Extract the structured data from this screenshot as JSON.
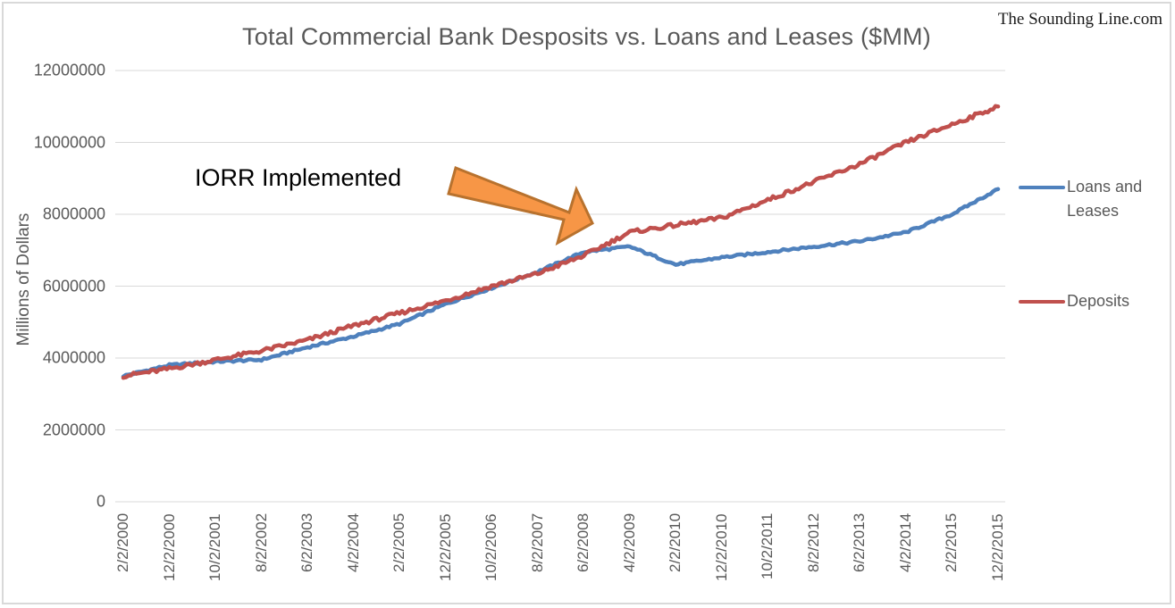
{
  "chart_data": {
    "type": "line",
    "title": "Total Commercial Bank Desposits vs. Loans and Leases ($MM)",
    "xlabel": "",
    "ylabel": "Millions of Dollars",
    "ylim": [
      0,
      12000000
    ],
    "yticks": [
      "0",
      "2000000",
      "4000000",
      "6000000",
      "8000000",
      "10000000",
      "12000000"
    ],
    "grid": true,
    "legend_position": "right",
    "categories": [
      "2/2/2000",
      "12/2/2000",
      "10/2/2001",
      "8/2/2002",
      "6/2/2003",
      "4/2/2004",
      "2/2/2005",
      "12/2/2005",
      "10/2/2006",
      "8/2/2007",
      "6/2/2008",
      "4/2/2009",
      "2/2/2010",
      "12/2/2010",
      "10/2/2011",
      "8/2/2012",
      "6/2/2013",
      "4/2/2014",
      "2/2/2015",
      "12/2/2015"
    ],
    "series": [
      {
        "name": "Loans and Leases",
        "color": "#4f81bd",
        "values": [
          3500000,
          3800000,
          3900000,
          3950000,
          4300000,
          4600000,
          4950000,
          5500000,
          5950000,
          6400000,
          6950000,
          7100000,
          6600000,
          6800000,
          6950000,
          7100000,
          7250000,
          7500000,
          8000000,
          8700000
        ]
      },
      {
        "name": "Deposits",
        "color": "#c0504d",
        "values": [
          3500000,
          3700000,
          3950000,
          4200000,
          4500000,
          4900000,
          5250000,
          5600000,
          6000000,
          6350000,
          6850000,
          7500000,
          7700000,
          7900000,
          8400000,
          8900000,
          9400000,
          10000000,
          10500000,
          11000000
        ]
      }
    ],
    "annotations": [
      {
        "text": "IORR Implemented",
        "type": "arrow",
        "color": "#f79646",
        "points_to": "late 2008"
      }
    ]
  },
  "title": "Total Commercial Bank Desposits vs. Loans and Leases ($MM)",
  "watermark": "The Sounding Line.com",
  "y_axis": {
    "label": "Millions of Dollars",
    "ticks": [
      "12000000",
      "10000000",
      "8000000",
      "6000000",
      "4000000",
      "2000000",
      "0"
    ]
  },
  "x_axis": {
    "ticks": [
      "2/2/2000",
      "12/2/2000",
      "10/2/2001",
      "8/2/2002",
      "6/2/2003",
      "4/2/2004",
      "2/2/2005",
      "12/2/2005",
      "10/2/2006",
      "8/2/2007",
      "6/2/2008",
      "4/2/2009",
      "2/2/2010",
      "12/2/2010",
      "10/2/2011",
      "8/2/2012",
      "6/2/2013",
      "4/2/2014",
      "2/2/2015",
      "12/2/2015"
    ]
  },
  "annotation": {
    "text": "IORR Implemented"
  },
  "legend": {
    "items": [
      {
        "label": "Loans and Leases",
        "color": "#4f81bd"
      },
      {
        "label": "Deposits",
        "color": "#c0504d"
      }
    ]
  }
}
